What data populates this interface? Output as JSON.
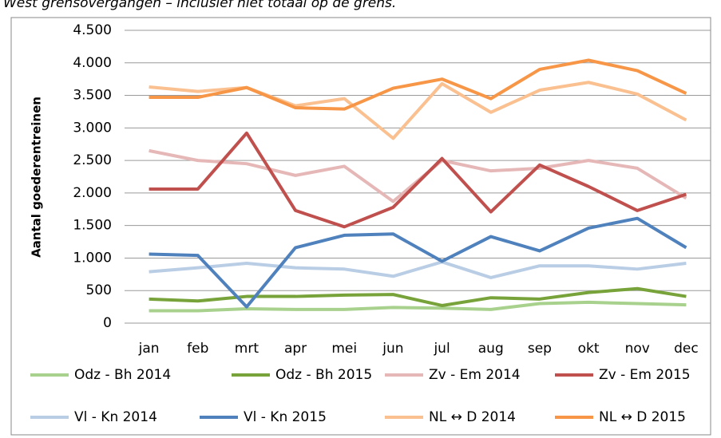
{
  "chart_data": {
    "type": "line",
    "title": "West grensovergangen – inclusief niet totaal op de grens.",
    "y_label": "Aantal goederentreinen",
    "categories": [
      "jan",
      "feb",
      "mrt",
      "apr",
      "mei",
      "jun",
      "jul",
      "aug",
      "sep",
      "okt",
      "nov",
      "dec"
    ],
    "ylim": [
      0,
      4500
    ],
    "yticks": [
      0,
      500,
      {
        "value": 1000,
        "label": "1.000"
      },
      {
        "value": 1500,
        "label": "1.500"
      },
      {
        "value": 2000,
        "label": "2.000"
      },
      {
        "value": 2500,
        "label": "2.500"
      },
      {
        "value": 3000,
        "label": "3.000"
      },
      {
        "value": 3500,
        "label": "3.500"
      },
      {
        "value": 4000,
        "label": "4.000"
      },
      {
        "value": 4500,
        "label": "4.500"
      }
    ],
    "grid": true,
    "legend": "bottom",
    "series": [
      {
        "name": "Odz - Bh 2014",
        "color": "#a9d18e",
        "values": [
          190,
          190,
          220,
          210,
          210,
          240,
          230,
          210,
          300,
          320,
          300,
          280
        ]
      },
      {
        "name": "Odz - Bh 2015",
        "color": "#77a33a",
        "values": [
          370,
          340,
          410,
          410,
          430,
          440,
          270,
          390,
          370,
          470,
          530,
          410
        ]
      },
      {
        "name": "Zv - Em 2014",
        "color": "#e5b8b7",
        "values": [
          2650,
          2500,
          2450,
          2270,
          2410,
          1870,
          2500,
          2340,
          2380,
          2500,
          2380,
          1920
        ]
      },
      {
        "name": "Zv - Em 2015",
        "color": "#c0504d",
        "values": [
          2060,
          2060,
          2920,
          1730,
          1480,
          1780,
          2530,
          1710,
          2430,
          2100,
          1730,
          1980
        ]
      },
      {
        "name": "Vl - Kn 2014",
        "color": "#b9cde5",
        "values": [
          790,
          850,
          920,
          850,
          830,
          720,
          940,
          700,
          880,
          880,
          830,
          920
        ]
      },
      {
        "name": "Vl - Kn 2015",
        "color": "#4f81bd",
        "values": [
          1060,
          1040,
          250,
          1160,
          1350,
          1370,
          950,
          1330,
          1110,
          1460,
          1610,
          1160
        ]
      },
      {
        "name": "NL ↔ D 2014",
        "color": "#fac090",
        "values": [
          3630,
          3560,
          3620,
          3340,
          3450,
          2840,
          3680,
          3240,
          3580,
          3700,
          3520,
          3120
        ]
      },
      {
        "name": "NL ↔ D 2015",
        "color": "#f79646",
        "values": [
          3470,
          3470,
          3620,
          3310,
          3290,
          3610,
          3750,
          3450,
          3900,
          4040,
          3880,
          3530
        ]
      }
    ]
  }
}
